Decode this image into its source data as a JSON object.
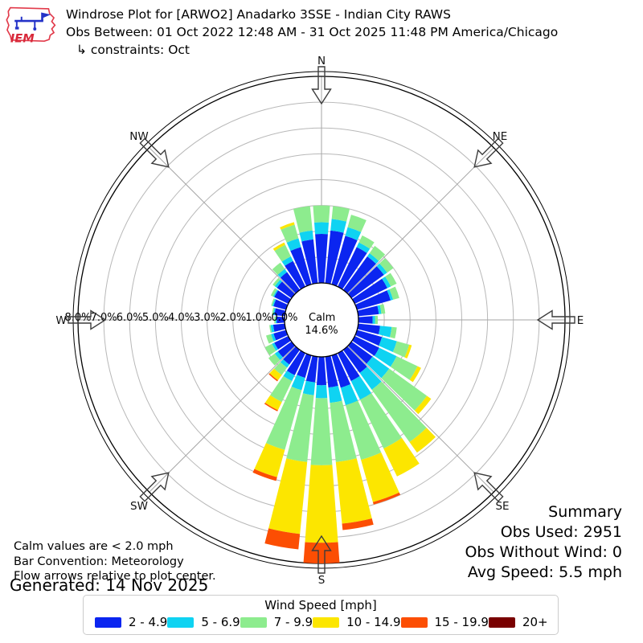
{
  "header": {
    "title": "Windrose Plot for [ARWO2] Anadarko 3SSE - Indian City RAWS",
    "obs_between": "Obs Between: 01 Oct 2022 12:48 AM - 31 Oct 2025 11:48 PM America/Chicago",
    "constraints": "↳ constraints: Oct"
  },
  "logo": {
    "text": "IEM"
  },
  "compass": {
    "labels": [
      "N",
      "NE",
      "E",
      "SE",
      "S",
      "SW",
      "W",
      "NW"
    ]
  },
  "radial_axis": {
    "labels": [
      "8.0%",
      "7.0%",
      "6.0%",
      "5.0%",
      "4.0%",
      "3.0%",
      "2.0%",
      "1.0%",
      "0.0%"
    ],
    "calm_label": "Calm",
    "calm_value": "14.6%"
  },
  "summary": {
    "title": "Summary",
    "obs_used": "Obs Used: 2951",
    "obs_without_wind": "Obs Without Wind: 0",
    "avg_speed": "Avg Speed: 5.5 mph"
  },
  "notes": [
    "Calm values are < 2.0 mph",
    "Bar Convention: Meteorology",
    "Flow arrows relative to plot center."
  ],
  "generated": "Generated: 14 Nov 2025",
  "legend": {
    "title": "Wind Speed [mph]",
    "bins": [
      {
        "label": "2 - 4.9",
        "color": "#0b25f0"
      },
      {
        "label": "5 - 6.9",
        "color": "#0fd3f2"
      },
      {
        "label": "7 - 9.9",
        "color": "#8dec8e"
      },
      {
        "label": "10 - 14.9",
        "color": "#fce600"
      },
      {
        "label": "15 - 19.9",
        "color": "#fc4e03"
      },
      {
        "label": "20+",
        "color": "#790000"
      }
    ]
  },
  "chart_data": {
    "type": "windrose",
    "units": "mph",
    "calm_percent": 14.6,
    "radial_rings_percent": [
      0,
      1,
      2,
      3,
      4,
      5,
      6,
      7,
      8
    ],
    "direction_step_deg": 10,
    "directions_deg": [
      0,
      10,
      20,
      30,
      40,
      50,
      60,
      70,
      80,
      90,
      100,
      110,
      120,
      130,
      140,
      150,
      160,
      170,
      180,
      190,
      200,
      210,
      220,
      230,
      240,
      250,
      260,
      270,
      280,
      290,
      300,
      310,
      320,
      330,
      340,
      350
    ],
    "series": [
      {
        "name": "2 - 4.9",
        "color": "#0b25f0",
        "values": [
          1.9,
          2.05,
          1.95,
          1.7,
          1.6,
          1.55,
          1.4,
          1.35,
          0.8,
          0.55,
          0.85,
          1.0,
          1.05,
          1.0,
          1.1,
          1.2,
          1.3,
          1.2,
          1.1,
          1.0,
          0.9,
          0.95,
          0.7,
          0.65,
          0.6,
          0.5,
          0.45,
          0.3,
          0.4,
          0.5,
          0.6,
          0.7,
          0.85,
          1.1,
          1.5,
          1.7
        ]
      },
      {
        "name": "5 - 6.9",
        "color": "#0fd3f2",
        "values": [
          0.45,
          0.45,
          0.35,
          0.2,
          0.15,
          0.15,
          0.15,
          0.1,
          0.1,
          0.1,
          0.45,
          0.6,
          0.75,
          0.8,
          0.8,
          0.8,
          0.7,
          0.6,
          0.5,
          0.5,
          0.5,
          0.25,
          0.15,
          0.15,
          0.1,
          0.1,
          0.1,
          0.05,
          0.05,
          0.05,
          0.05,
          0.1,
          0.15,
          0.2,
          0.35,
          0.35
        ]
      },
      {
        "name": "7 - 9.9",
        "color": "#8dec8e",
        "values": [
          0.65,
          0.5,
          0.5,
          0.3,
          0.35,
          0.3,
          0.25,
          0.25,
          0.15,
          0.1,
          0.2,
          0.5,
          0.9,
          1.8,
          2.5,
          2.1,
          2.2,
          2.3,
          2.6,
          2.6,
          2.4,
          0.9,
          0.35,
          0.3,
          0.3,
          0.2,
          0.05,
          0.05,
          0.05,
          0.05,
          0.1,
          0.1,
          0.3,
          0.5,
          0.55,
          0.95
        ]
      },
      {
        "name": "10 - 14.9",
        "color": "#fce600",
        "values": [
          0,
          0,
          0,
          0,
          0,
          0,
          0,
          0,
          0,
          0,
          0,
          0.1,
          0.15,
          0.2,
          0.5,
          1.2,
          1.7,
          2.4,
          3.0,
          2.8,
          1.1,
          0.35,
          0.25,
          0,
          0,
          0,
          0,
          0,
          0,
          0,
          0,
          0,
          0,
          0.1,
          0.1,
          0
        ]
      },
      {
        "name": "15 - 19.9",
        "color": "#fc4e03",
        "values": [
          0,
          0,
          0,
          0,
          0,
          0,
          0,
          0,
          0,
          0,
          0,
          0,
          0,
          0,
          0,
          0,
          0.1,
          0.25,
          0.8,
          0.6,
          0.15,
          0.05,
          0.05,
          0,
          0,
          0,
          0,
          0,
          0,
          0,
          0,
          0,
          0,
          0,
          0,
          0
        ]
      },
      {
        "name": "20+",
        "color": "#790000",
        "values": [
          0,
          0,
          0,
          0,
          0,
          0,
          0,
          0,
          0,
          0,
          0,
          0,
          0,
          0,
          0,
          0,
          0,
          0,
          0,
          0,
          0,
          0,
          0,
          0,
          0,
          0,
          0,
          0,
          0,
          0,
          0,
          0,
          0,
          0,
          0,
          0
        ]
      }
    ]
  }
}
